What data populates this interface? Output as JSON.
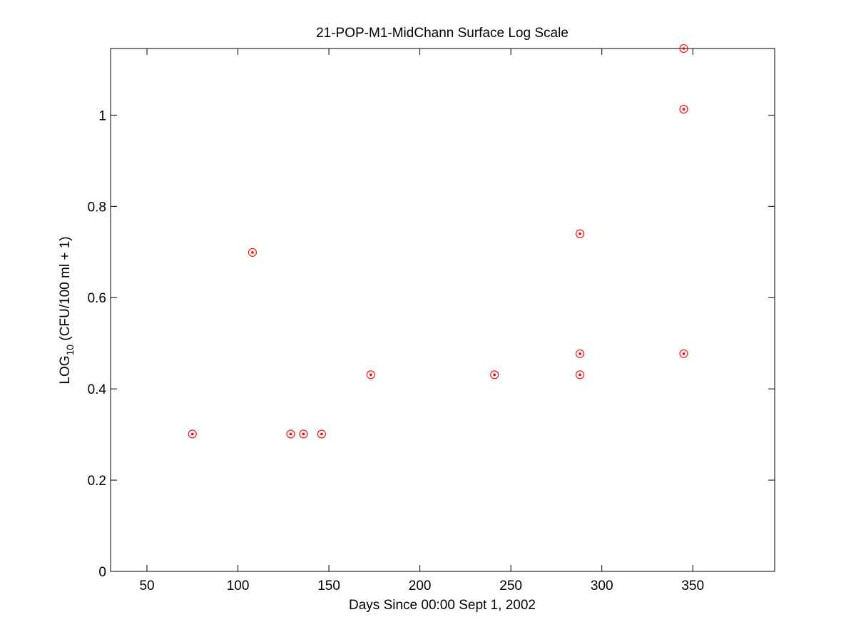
{
  "chart_data": {
    "type": "scatter",
    "title": "21-POP-M1-MidChann Surface Log Scale",
    "xlabel": "Days Since 00:00 Sept 1, 2002",
    "ylabel": {
      "prefix": "LOG",
      "subscript": "10",
      "suffix": " (CFU/100 ml + 1)"
    },
    "xlim": [
      30,
      395
    ],
    "ylim": [
      0,
      1.146
    ],
    "xticks": [
      50,
      100,
      150,
      200,
      250,
      300,
      350
    ],
    "xtick_labels": [
      "50",
      "100",
      "150",
      "200",
      "250",
      "300",
      "350"
    ],
    "yticks": [
      0,
      0.2,
      0.4,
      0.6,
      0.8,
      1
    ],
    "ytick_labels": [
      "0",
      "0.2",
      "0.4",
      "0.6",
      "0.8",
      "1"
    ],
    "grid": false,
    "legend": "none",
    "marker": "circle with center dot",
    "marker_color": "#ff0000",
    "series": [
      {
        "points": [
          {
            "x": 75,
            "y": 0.301
          },
          {
            "x": 108,
            "y": 0.699
          },
          {
            "x": 129,
            "y": 0.301
          },
          {
            "x": 136,
            "y": 0.301
          },
          {
            "x": 146,
            "y": 0.301
          },
          {
            "x": 173,
            "y": 0.431
          },
          {
            "x": 241,
            "y": 0.431
          },
          {
            "x": 288,
            "y": 0.74
          },
          {
            "x": 288,
            "y": 0.477
          },
          {
            "x": 288,
            "y": 0.431
          },
          {
            "x": 345,
            "y": 1.146
          },
          {
            "x": 345,
            "y": 1.013
          },
          {
            "x": 345,
            "y": 0.477
          }
        ]
      }
    ]
  }
}
